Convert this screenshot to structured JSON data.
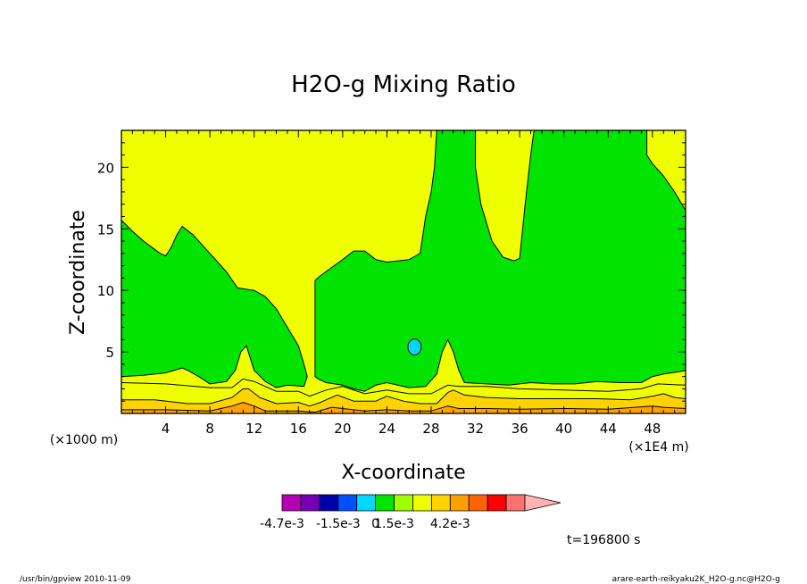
{
  "chart_data": {
    "type": "contour",
    "title": "H2O-g Mixing Ratio",
    "xlabel": "X-coordinate",
    "ylabel": "Z-coordinate",
    "x_unit_left": "(×1000 m)",
    "x_unit_right": "(×1E4 m)",
    "xlim": [
      0,
      51
    ],
    "ylim": [
      0,
      23
    ],
    "xticks": [
      4,
      8,
      12,
      16,
      20,
      24,
      28,
      32,
      36,
      40,
      44,
      48
    ],
    "yticks": [
      5,
      10,
      15,
      20
    ],
    "time_label": "t=196800 s",
    "colorbar": {
      "labels": [
        "-4.7e-3",
        "-1.5e-3",
        "0",
        "1.5e-3",
        "4.2e-3"
      ],
      "colors": [
        "#b400b4",
        "#7800b4",
        "#0000aa",
        "#0050ff",
        "#00d8ff",
        "#00e400",
        "#a0ff00",
        "#f0ff00",
        "#ffd200",
        "#ffa000",
        "#ff6400",
        "#ff0000",
        "#ff7070",
        "#ffb4b4"
      ],
      "label_positions": [
        0,
        3,
        5,
        6,
        9
      ]
    },
    "fill_colors": {
      "yellow": "#f0ff00",
      "green": "#00e400",
      "cyan": "#00d8ff",
      "gold": "#ffd200",
      "orange": "#ffa000",
      "dark_orange": "#ff6400"
    },
    "regions": [
      {
        "color": "green",
        "points": [
          [
            0,
            15.7
          ],
          [
            1,
            14.8
          ],
          [
            2,
            14
          ],
          [
            3.5,
            13
          ],
          [
            4,
            12.8
          ],
          [
            4.5,
            13.5
          ],
          [
            5,
            14.5
          ],
          [
            5.5,
            15.2
          ],
          [
            6.5,
            14.5
          ],
          [
            8,
            13
          ],
          [
            9.5,
            11.5
          ],
          [
            10.5,
            10.2
          ],
          [
            12,
            10
          ],
          [
            13,
            9.5
          ],
          [
            14,
            8.5
          ],
          [
            15,
            7
          ],
          [
            16,
            5.5
          ],
          [
            16.5,
            4
          ],
          [
            16.8,
            3
          ],
          [
            16.5,
            2.2
          ],
          [
            15,
            2.3
          ],
          [
            14,
            2.1
          ],
          [
            13,
            2.6
          ],
          [
            12,
            3.5
          ],
          [
            11.3,
            5.5
          ],
          [
            10.8,
            5
          ],
          [
            10.3,
            3.5
          ],
          [
            9.5,
            2.6
          ],
          [
            8,
            2.4
          ],
          [
            7,
            3
          ],
          [
            6,
            3.5
          ],
          [
            5.5,
            3.7
          ],
          [
            4,
            3.3
          ],
          [
            2,
            3.1
          ],
          [
            0,
            3
          ]
        ]
      },
      {
        "color": "green",
        "points": [
          [
            17.5,
            3
          ],
          [
            17.5,
            10.8
          ],
          [
            18,
            11.2
          ],
          [
            20,
            12.5
          ],
          [
            21,
            13.2
          ],
          [
            22,
            13.2
          ],
          [
            23,
            12.5
          ],
          [
            24,
            12.3
          ],
          [
            26,
            12.5
          ],
          [
            27,
            13
          ],
          [
            27.5,
            16
          ],
          [
            28,
            18
          ],
          [
            28.3,
            20
          ],
          [
            28.5,
            23
          ],
          [
            32,
            23
          ],
          [
            32,
            20
          ],
          [
            32.5,
            17
          ],
          [
            33.5,
            14
          ],
          [
            34.5,
            12.7
          ],
          [
            35.5,
            12.4
          ],
          [
            36,
            12.6
          ],
          [
            36.5,
            17
          ],
          [
            37,
            21
          ],
          [
            37.3,
            23
          ],
          [
            47.5,
            23
          ],
          [
            47.5,
            21
          ],
          [
            48,
            20.3
          ],
          [
            49,
            19.3
          ],
          [
            50,
            18
          ],
          [
            51,
            16.5
          ],
          [
            51,
            3.5
          ],
          [
            50.5,
            3.4
          ],
          [
            49,
            3.2
          ],
          [
            48,
            3
          ],
          [
            47,
            2.5
          ],
          [
            45,
            2.5
          ],
          [
            43,
            2.6
          ],
          [
            41,
            2.4
          ],
          [
            39,
            2.4
          ],
          [
            37,
            2.5
          ],
          [
            35,
            2.3
          ],
          [
            33,
            2.4
          ],
          [
            31,
            2.5
          ],
          [
            30.5,
            3.5
          ],
          [
            30,
            5
          ],
          [
            29.5,
            6
          ],
          [
            29,
            5
          ],
          [
            28.5,
            3.2
          ],
          [
            27.5,
            2.2
          ],
          [
            26,
            2.1
          ],
          [
            24,
            2.5
          ],
          [
            23,
            2.3
          ],
          [
            22,
            1.8
          ],
          [
            21,
            2
          ],
          [
            20,
            2.3
          ],
          [
            18.5,
            2.5
          ],
          [
            17.8,
            2.8
          ]
        ]
      },
      {
        "color": "gold",
        "points": [
          [
            0,
            1.1
          ],
          [
            3,
            1.1
          ],
          [
            6,
            0.8
          ],
          [
            8,
            0.8
          ],
          [
            10,
            1.3
          ],
          [
            11,
            2
          ],
          [
            11.5,
            2
          ],
          [
            12.5,
            1.3
          ],
          [
            14,
            0.8
          ],
          [
            16,
            0.9
          ],
          [
            17,
            0.6
          ],
          [
            18,
            0.9
          ],
          [
            19.5,
            1.5
          ],
          [
            21,
            1
          ],
          [
            23,
            1
          ],
          [
            24,
            1.4
          ],
          [
            25.5,
            1
          ],
          [
            27,
            0.8
          ],
          [
            28.5,
            0.8
          ],
          [
            29.5,
            1.7
          ],
          [
            30,
            1.9
          ],
          [
            31,
            1.5
          ],
          [
            33,
            1.3
          ],
          [
            36,
            1.2
          ],
          [
            40,
            1.2
          ],
          [
            43,
            1.2
          ],
          [
            46,
            1.1
          ],
          [
            48,
            1.4
          ],
          [
            49,
            1.6
          ],
          [
            50,
            1.3
          ],
          [
            51,
            1.2
          ],
          [
            51,
            0
          ],
          [
            0,
            0
          ]
        ]
      },
      {
        "color": "orange",
        "points": [
          [
            0,
            0.3
          ],
          [
            4,
            0.3
          ],
          [
            8,
            0.2
          ],
          [
            10,
            0.6
          ],
          [
            11,
            0.9
          ],
          [
            12,
            0.6
          ],
          [
            13,
            0.2
          ],
          [
            16,
            0.2
          ],
          [
            17.5,
            0.1
          ],
          [
            19,
            0.5
          ],
          [
            20,
            0.4
          ],
          [
            22,
            0.2
          ],
          [
            24,
            0.3
          ],
          [
            26,
            0.2
          ],
          [
            28,
            0.2
          ],
          [
            29.5,
            0.6
          ],
          [
            30.5,
            0.4
          ],
          [
            33,
            0.4
          ],
          [
            36,
            0.35
          ],
          [
            40,
            0.4
          ],
          [
            44,
            0.35
          ],
          [
            48,
            0.6
          ],
          [
            49,
            0.5
          ],
          [
            51,
            0.4
          ],
          [
            51,
            0
          ],
          [
            0,
            0
          ]
        ]
      },
      {
        "color": "cyan",
        "ellipse": [
          26.5,
          5.4,
          0.6,
          0.65
        ]
      }
    ],
    "contour_lines": [
      [
        [
          0,
          2.5
        ],
        [
          4,
          2.4
        ],
        [
          8,
          2.1
        ],
        [
          10,
          2.1
        ],
        [
          11,
          2.8
        ],
        [
          12,
          2.6
        ],
        [
          14,
          1.8
        ],
        [
          16,
          1.8
        ],
        [
          17,
          1.4
        ],
        [
          18.5,
          1.9
        ],
        [
          20,
          2.2
        ],
        [
          22,
          1.6
        ],
        [
          24,
          1.9
        ],
        [
          26,
          1.6
        ],
        [
          28,
          1.6
        ],
        [
          29.5,
          2.3
        ],
        [
          30.5,
          2.2
        ],
        [
          33,
          2.2
        ],
        [
          36,
          2
        ],
        [
          40,
          1.9
        ],
        [
          44,
          1.8
        ],
        [
          47,
          2
        ],
        [
          48.5,
          2.4
        ],
        [
          51,
          2.3
        ]
      ]
    ],
    "footer_left": "/usr/bin/gpview   2010-11-09",
    "footer_right": "arare-earth-reikyaku2K_H2O-g.nc@H2O-g"
  }
}
